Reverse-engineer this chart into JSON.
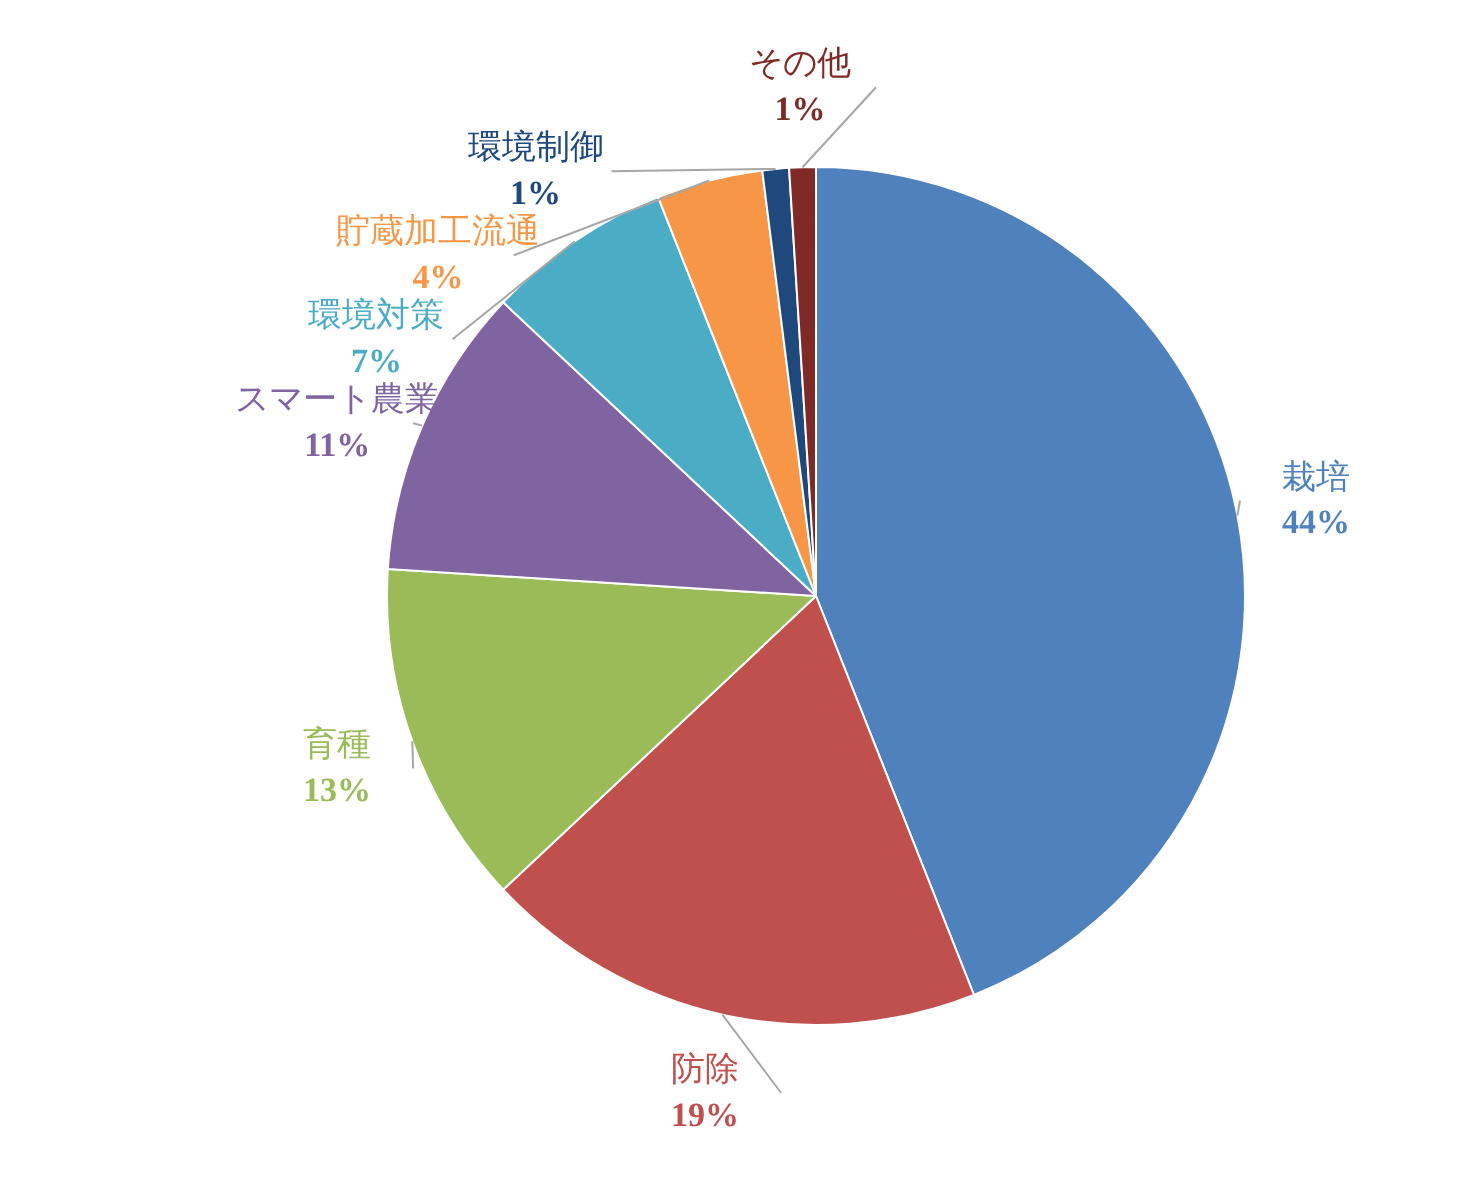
{
  "chart_data": {
    "type": "pie",
    "categories": [
      "栽培",
      "防除",
      "育種",
      "スマート農業",
      "環境対策",
      "貯蔵加工流通",
      "環境制御",
      "その他"
    ],
    "values": [
      44,
      19,
      13,
      11,
      7,
      4,
      1,
      1
    ],
    "colors": [
      "#4f81bd",
      "#c0504d",
      "#9bbb59",
      "#8064a2",
      "#4bacc6",
      "#f79646",
      "#1f497d",
      "#7f2a26"
    ],
    "value_labels": [
      "44%",
      "19%",
      "13%",
      "11%",
      "7%",
      "4%",
      "1%",
      "1%"
    ],
    "legend": false
  }
}
